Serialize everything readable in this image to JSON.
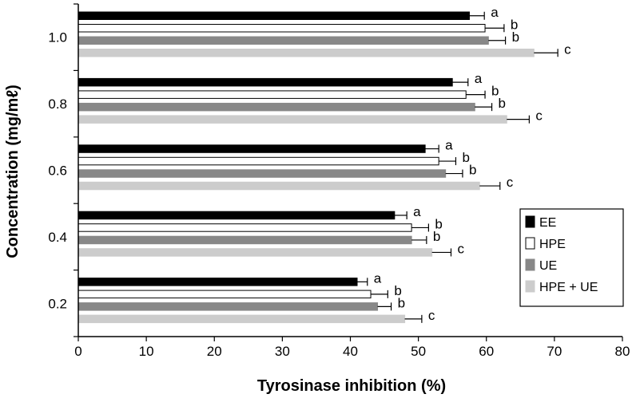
{
  "chart_data": {
    "type": "bar",
    "orientation": "horizontal",
    "title": "",
    "xlabel": "Tyrosinase inhibition (%)",
    "ylabel": "Concentration (mg/mℓ)",
    "xlim": [
      0,
      80
    ],
    "x_ticks": [
      "0",
      "10",
      "20",
      "30",
      "40",
      "50",
      "60",
      "70",
      "80"
    ],
    "categories": [
      "0.2",
      "0.4",
      "0.6",
      "0.8",
      "1.0"
    ],
    "series": [
      {
        "name": "EE",
        "color": "#000000",
        "values": [
          41,
          46.5,
          51,
          55,
          57.5
        ],
        "errors": [
          1.5,
          1.8,
          2,
          2.3,
          2.2
        ],
        "letters": [
          "a",
          "a",
          "a",
          "a",
          "a"
        ]
      },
      {
        "name": "HPE",
        "color": "#ffffff",
        "values": [
          43,
          49,
          53,
          57,
          59.8
        ],
        "errors": [
          2.5,
          2.5,
          2.5,
          2.8,
          2.8
        ],
        "letters": [
          "b",
          "b",
          "b",
          "b",
          "b"
        ]
      },
      {
        "name": "UE",
        "color": "#888888",
        "values": [
          44,
          49,
          54,
          58.3,
          60.3
        ],
        "errors": [
          2,
          2.2,
          2.5,
          2.5,
          2.5
        ],
        "letters": [
          "b",
          "b",
          "b",
          "b",
          "b"
        ]
      },
      {
        "name": "HPE + UE",
        "color": "#cccccc",
        "values": [
          48,
          52,
          59,
          63,
          67
        ],
        "errors": [
          2.5,
          2.8,
          3,
          3.3,
          3.5
        ],
        "letters": [
          "c",
          "c",
          "c",
          "c",
          "c"
        ]
      }
    ],
    "legend_position": "bottom-right",
    "grid": false
  }
}
